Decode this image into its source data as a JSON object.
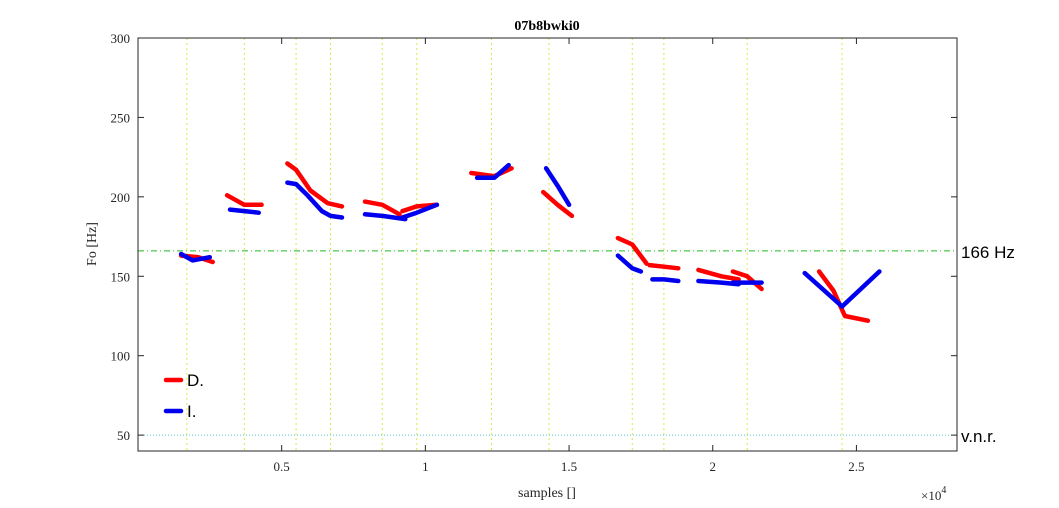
{
  "chart_data": {
    "type": "line",
    "title": "07b8bwki0",
    "xlabel": "samples []",
    "ylabel": "Fo [Hz]",
    "x_exponent_label": "×10",
    "x_exponent_power": "4",
    "xlim": [
      0,
      28500
    ],
    "ylim": [
      40,
      300
    ],
    "xticks": [
      5000,
      10000,
      15000,
      20000,
      25000
    ],
    "xtick_labels": [
      "0.5",
      "1",
      "1.5",
      "2",
      "2.5"
    ],
    "yticks": [
      50,
      100,
      150,
      200,
      250,
      300
    ],
    "ytick_labels": [
      "50",
      "100",
      "150",
      "200",
      "250",
      "300"
    ],
    "grid": "vertical dotted yellow-green",
    "vertical_grid_x": [
      1700,
      3700,
      5500,
      6700,
      8500,
      9700,
      12300,
      14300,
      17200,
      18300,
      21200,
      24500
    ],
    "reference_lines": [
      {
        "y": 166,
        "label": "166 Hz",
        "color": "#22bb22",
        "style": "dash-dot"
      },
      {
        "y": 50,
        "label": "v.n.r.",
        "color": "#55cccc",
        "style": "dotted"
      }
    ],
    "legend_position": "bottom-left",
    "series": [
      {
        "name": "D.",
        "color": "#ff0000",
        "segments": [
          [
            [
              1500,
              163
            ],
            [
              2100,
              162
            ],
            [
              2600,
              159
            ]
          ],
          [
            [
              3100,
              201
            ],
            [
              3700,
              195
            ],
            [
              4300,
              195
            ]
          ],
          [
            [
              5200,
              221
            ],
            [
              5500,
              217
            ],
            [
              6000,
              204
            ],
            [
              6600,
              196
            ],
            [
              7100,
              194
            ]
          ],
          [
            [
              7900,
              197
            ],
            [
              8500,
              195
            ],
            [
              9100,
              189
            ]
          ],
          [
            [
              9200,
              191
            ],
            [
              9700,
              194
            ],
            [
              10400,
              195
            ]
          ],
          [
            [
              11600,
              215
            ],
            [
              12400,
              213
            ],
            [
              13000,
              218
            ]
          ],
          [
            [
              14100,
              203
            ],
            [
              14600,
              195
            ],
            [
              15100,
              188
            ]
          ],
          [
            [
              16700,
              174
            ],
            [
              17200,
              170
            ],
            [
              17700,
              158
            ]
          ],
          [
            [
              17800,
              157
            ],
            [
              18300,
              156
            ],
            [
              18800,
              155
            ]
          ],
          [
            [
              19500,
              154
            ],
            [
              20300,
              150
            ],
            [
              20900,
              148
            ]
          ],
          [
            [
              20700,
              153
            ],
            [
              21200,
              150
            ],
            [
              21700,
              142
            ]
          ],
          [
            [
              23700,
              153
            ],
            [
              24200,
              141
            ],
            [
              24600,
              125
            ],
            [
              25400,
              122
            ]
          ]
        ]
      },
      {
        "name": "I.",
        "color": "#0000ee",
        "segments": [
          [
            [
              1500,
              164
            ],
            [
              1900,
              160
            ],
            [
              2500,
              162
            ]
          ],
          [
            [
              3200,
              192
            ],
            [
              3700,
              191
            ],
            [
              4200,
              190
            ]
          ],
          [
            [
              5200,
              209
            ],
            [
              5500,
              208
            ],
            [
              5900,
              201
            ],
            [
              6400,
              191
            ],
            [
              6700,
              188
            ],
            [
              7100,
              187
            ]
          ],
          [
            [
              7900,
              189
            ],
            [
              8500,
              188
            ],
            [
              9300,
              186
            ]
          ],
          [
            [
              9200,
              187
            ],
            [
              9700,
              190
            ],
            [
              10400,
              195
            ]
          ],
          [
            [
              11800,
              212
            ],
            [
              12400,
              212
            ],
            [
              12900,
              220
            ]
          ],
          [
            [
              14200,
              218
            ],
            [
              14600,
              207
            ],
            [
              15000,
              195
            ]
          ],
          [
            [
              16700,
              163
            ],
            [
              17200,
              155
            ],
            [
              17500,
              153
            ]
          ],
          [
            [
              17900,
              148
            ],
            [
              18300,
              148
            ],
            [
              18800,
              147
            ]
          ],
          [
            [
              19500,
              147
            ],
            [
              20300,
              146
            ],
            [
              20900,
              145
            ]
          ],
          [
            [
              20700,
              146
            ],
            [
              21200,
              146
            ],
            [
              21700,
              146
            ]
          ],
          [
            [
              23200,
              152
            ],
            [
              24500,
              131
            ],
            [
              25800,
              153
            ]
          ]
        ]
      }
    ]
  }
}
